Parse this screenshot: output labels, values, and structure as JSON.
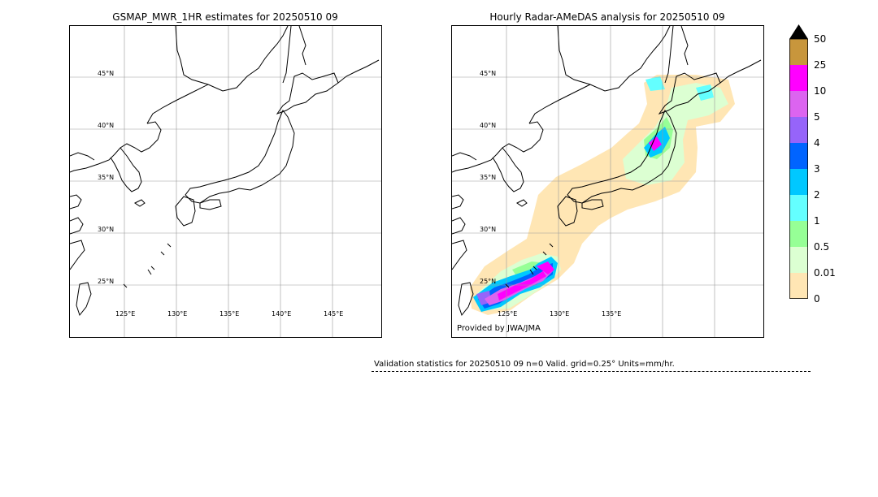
{
  "left_panel": {
    "title": "GSMAP_MWR_1HR estimates for 20250510 09",
    "lat_labels": [
      "45°N",
      "40°N",
      "35°N",
      "30°N",
      "25°N"
    ],
    "lon_labels": [
      "125°E",
      "130°E",
      "135°E",
      "140°E",
      "145°E"
    ]
  },
  "right_panel": {
    "title": "Hourly Radar-AMeDAS analysis for 20250510 09",
    "lat_labels": [
      "45°N",
      "40°N",
      "35°N",
      "30°N",
      "25°N"
    ],
    "lon_labels": [
      "125°E",
      "130°E",
      "135°E"
    ],
    "credit": "Provided by JWA/JMA"
  },
  "colorbar": {
    "labels": [
      "50",
      "25",
      "10",
      "5",
      "4",
      "3",
      "2",
      "1",
      "0.5",
      "0.01",
      "0"
    ],
    "colors": [
      "#c8963c",
      "#ff00ff",
      "#dc64f0",
      "#9664fa",
      "#0064ff",
      "#00c8ff",
      "#64ffff",
      "#96ff96",
      "#dcffd2",
      "#ffe6b4"
    ],
    "extend_color": "#000000"
  },
  "validation": {
    "text": "Validation statistics for 20250510 09  n=0 Valid. grid=0.25° Units=mm/hr."
  }
}
